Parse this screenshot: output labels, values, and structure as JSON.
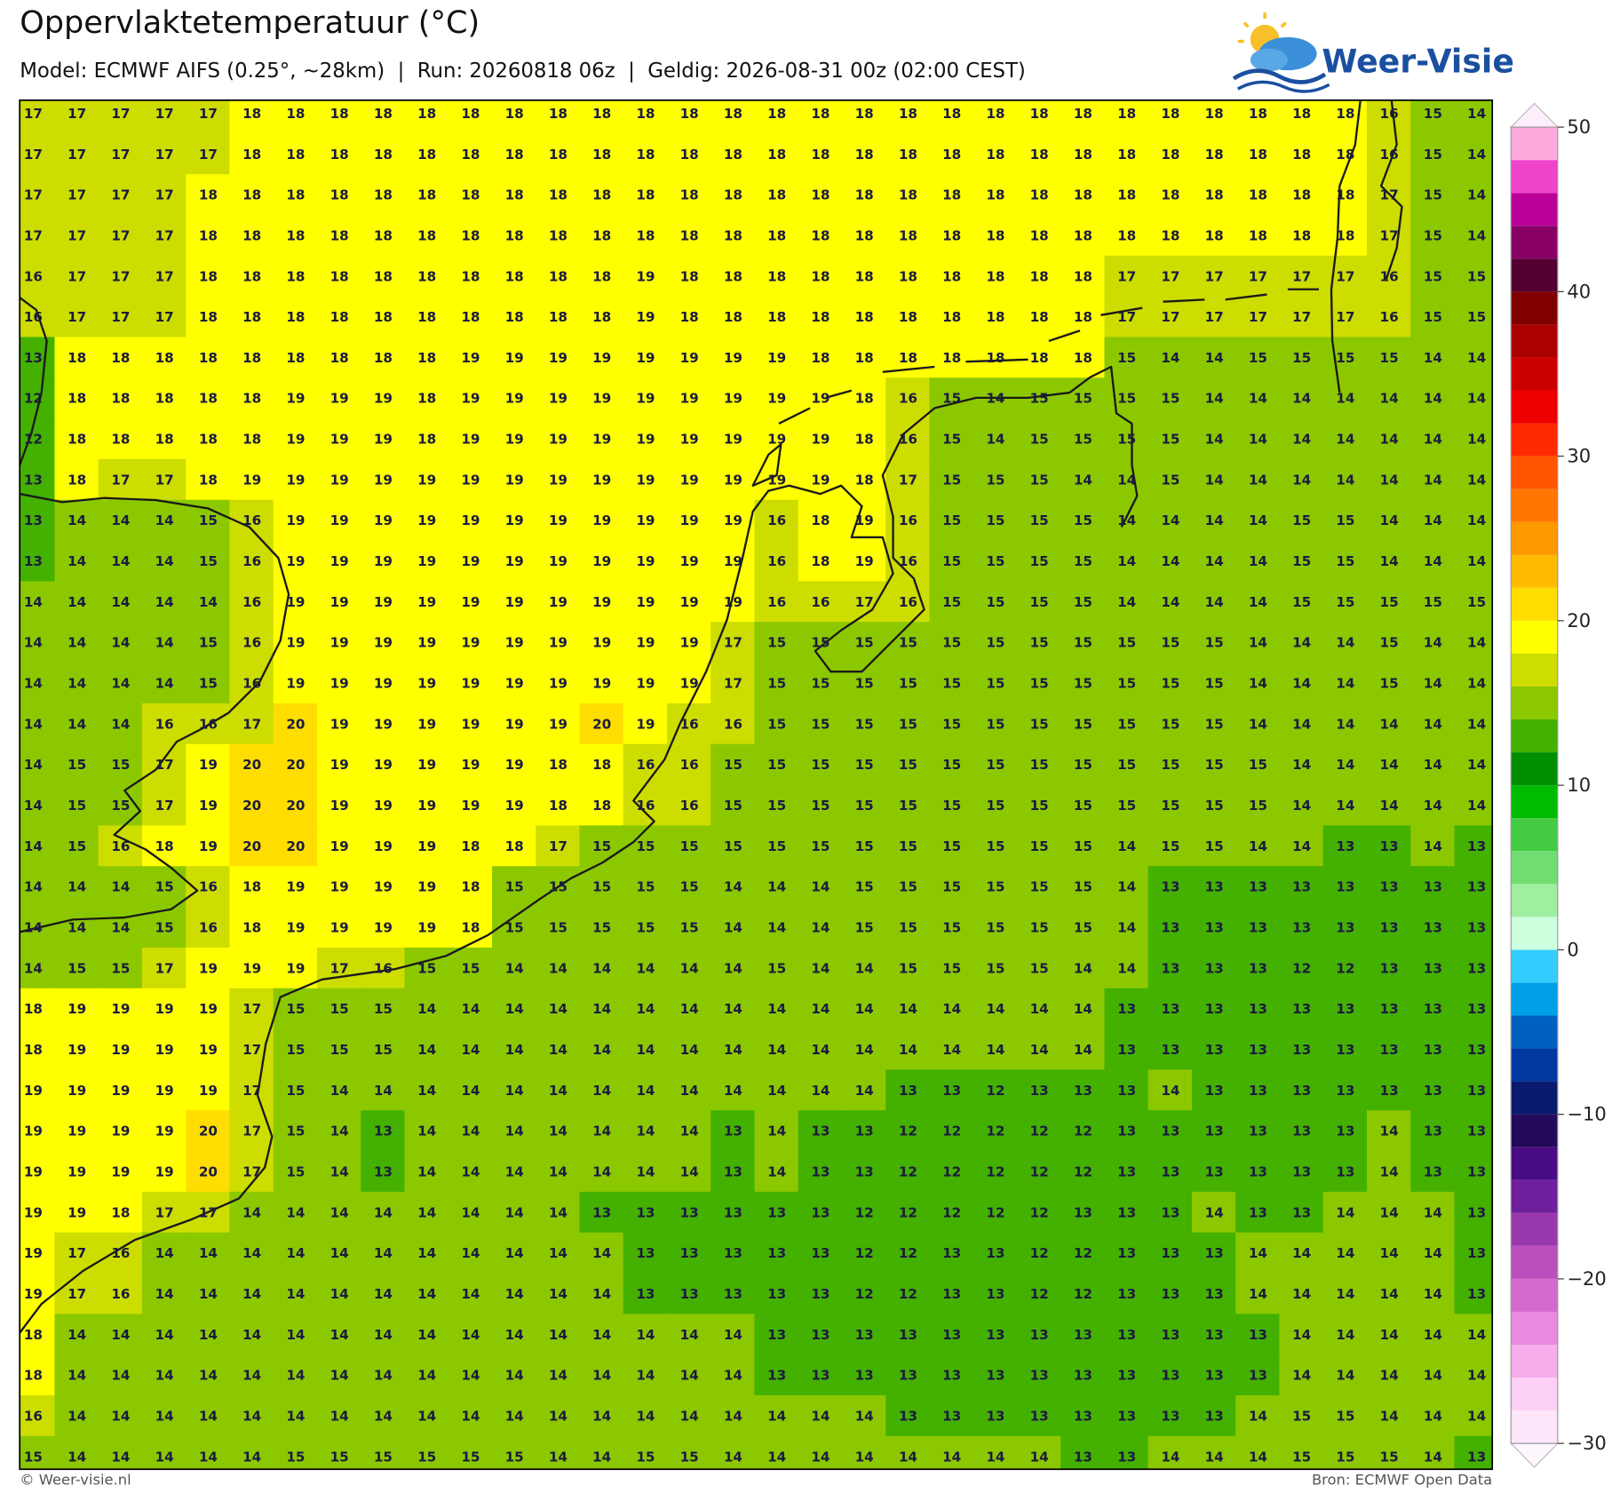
{
  "header": {
    "title": "Oppervlaktetemperatuur (°C)",
    "subtitle": "Model: ECMWF AIFS (0.25°, ~28km)  |  Run: 20260818 06z  |  Geldig: 2026-08-31 00z (02:00 CEST)"
  },
  "logo": {
    "text": "Weer-Visie"
  },
  "map": {
    "grid": [
      [
        17,
        17,
        17,
        17,
        17,
        18,
        18,
        18,
        18,
        18,
        18,
        18,
        18,
        18,
        18,
        18,
        18,
        18,
        18,
        18,
        18,
        18,
        18,
        18,
        18,
        18,
        18,
        18,
        18,
        18,
        18,
        16,
        15,
        14
      ],
      [
        17,
        17,
        17,
        17,
        17,
        18,
        18,
        18,
        18,
        18,
        18,
        18,
        18,
        18,
        18,
        18,
        18,
        18,
        18,
        18,
        18,
        18,
        18,
        18,
        18,
        18,
        18,
        18,
        18,
        18,
        18,
        16,
        15,
        14
      ],
      [
        17,
        17,
        17,
        17,
        18,
        18,
        18,
        18,
        18,
        18,
        18,
        18,
        18,
        18,
        18,
        18,
        18,
        18,
        18,
        18,
        18,
        18,
        18,
        18,
        18,
        18,
        18,
        18,
        18,
        18,
        18,
        17,
        15,
        14
      ],
      [
        17,
        17,
        17,
        17,
        18,
        18,
        18,
        18,
        18,
        18,
        18,
        18,
        18,
        18,
        18,
        18,
        18,
        18,
        18,
        18,
        18,
        18,
        18,
        18,
        18,
        18,
        18,
        18,
        18,
        18,
        18,
        17,
        15,
        14
      ],
      [
        16,
        17,
        17,
        17,
        18,
        18,
        18,
        18,
        18,
        18,
        18,
        18,
        18,
        18,
        19,
        18,
        18,
        18,
        18,
        18,
        18,
        18,
        18,
        18,
        18,
        17,
        17,
        17,
        17,
        17,
        17,
        16,
        15,
        15
      ],
      [
        16,
        17,
        17,
        17,
        18,
        18,
        18,
        18,
        18,
        18,
        18,
        18,
        18,
        18,
        19,
        18,
        18,
        18,
        18,
        18,
        18,
        18,
        18,
        18,
        18,
        17,
        17,
        17,
        17,
        17,
        17,
        16,
        15,
        15
      ],
      [
        13,
        18,
        18,
        18,
        18,
        18,
        18,
        18,
        18,
        18,
        19,
        19,
        19,
        19,
        19,
        19,
        19,
        19,
        18,
        18,
        18,
        18,
        18,
        18,
        18,
        15,
        14,
        14,
        15,
        15,
        15,
        15,
        14,
        14
      ],
      [
        12,
        18,
        18,
        18,
        18,
        18,
        19,
        19,
        19,
        18,
        19,
        19,
        19,
        19,
        19,
        19,
        19,
        19,
        19,
        18,
        16,
        15,
        14,
        15,
        15,
        15,
        15,
        14,
        14,
        14,
        14,
        14,
        14,
        14
      ],
      [
        12,
        18,
        18,
        18,
        18,
        18,
        19,
        19,
        19,
        18,
        19,
        19,
        19,
        19,
        19,
        19,
        19,
        19,
        19,
        18,
        16,
        15,
        14,
        15,
        15,
        15,
        15,
        14,
        14,
        14,
        14,
        14,
        14,
        14
      ],
      [
        13,
        18,
        17,
        17,
        18,
        19,
        19,
        19,
        19,
        19,
        19,
        19,
        19,
        19,
        19,
        19,
        19,
        19,
        19,
        18,
        17,
        15,
        15,
        15,
        14,
        14,
        15,
        14,
        14,
        14,
        14,
        14,
        14,
        14
      ],
      [
        13,
        14,
        14,
        14,
        15,
        16,
        19,
        19,
        19,
        19,
        19,
        19,
        19,
        19,
        19,
        19,
        19,
        16,
        18,
        19,
        16,
        15,
        15,
        15,
        15,
        14,
        14,
        14,
        14,
        15,
        15,
        14,
        14,
        14
      ],
      [
        13,
        14,
        14,
        14,
        15,
        16,
        19,
        19,
        19,
        19,
        19,
        19,
        19,
        19,
        19,
        19,
        19,
        16,
        18,
        19,
        16,
        15,
        15,
        15,
        15,
        14,
        14,
        14,
        14,
        15,
        15,
        14,
        14,
        14
      ],
      [
        14,
        14,
        14,
        14,
        14,
        16,
        19,
        19,
        19,
        19,
        19,
        19,
        19,
        19,
        19,
        19,
        19,
        16,
        16,
        17,
        16,
        15,
        15,
        15,
        15,
        14,
        14,
        14,
        14,
        15,
        15,
        15,
        15,
        15
      ],
      [
        14,
        14,
        14,
        14,
        15,
        16,
        19,
        19,
        19,
        19,
        19,
        19,
        19,
        19,
        19,
        19,
        17,
        15,
        15,
        15,
        15,
        15,
        15,
        15,
        15,
        15,
        15,
        15,
        14,
        14,
        14,
        15,
        14,
        14
      ],
      [
        14,
        14,
        14,
        14,
        15,
        16,
        19,
        19,
        19,
        19,
        19,
        19,
        19,
        19,
        19,
        19,
        17,
        15,
        15,
        15,
        15,
        15,
        15,
        15,
        15,
        15,
        15,
        15,
        14,
        14,
        14,
        15,
        14,
        14
      ],
      [
        14,
        14,
        14,
        16,
        16,
        17,
        20,
        19,
        19,
        19,
        19,
        19,
        19,
        20,
        19,
        16,
        16,
        15,
        15,
        15,
        15,
        15,
        15,
        15,
        15,
        15,
        15,
        15,
        14,
        14,
        14,
        14,
        14,
        14
      ],
      [
        14,
        15,
        15,
        17,
        19,
        20,
        20,
        19,
        19,
        19,
        19,
        19,
        18,
        18,
        16,
        16,
        15,
        15,
        15,
        15,
        15,
        15,
        15,
        15,
        15,
        15,
        15,
        15,
        15,
        14,
        14,
        14,
        14,
        14
      ],
      [
        14,
        15,
        15,
        17,
        19,
        20,
        20,
        19,
        19,
        19,
        19,
        19,
        18,
        18,
        16,
        16,
        15,
        15,
        15,
        15,
        15,
        15,
        15,
        15,
        15,
        15,
        15,
        15,
        15,
        14,
        14,
        14,
        14,
        14
      ],
      [
        14,
        15,
        16,
        18,
        19,
        20,
        20,
        19,
        19,
        19,
        18,
        18,
        17,
        15,
        15,
        15,
        15,
        15,
        15,
        15,
        15,
        15,
        15,
        15,
        15,
        14,
        15,
        15,
        14,
        14,
        13,
        13,
        14,
        13
      ],
      [
        14,
        14,
        14,
        15,
        16,
        18,
        19,
        19,
        19,
        19,
        18,
        15,
        15,
        15,
        15,
        15,
        14,
        14,
        14,
        15,
        15,
        15,
        15,
        15,
        15,
        14,
        13,
        13,
        13,
        13,
        13,
        13,
        13,
        13
      ],
      [
        14,
        14,
        14,
        15,
        16,
        18,
        19,
        19,
        19,
        19,
        18,
        15,
        15,
        15,
        15,
        15,
        14,
        14,
        14,
        15,
        15,
        15,
        15,
        15,
        15,
        14,
        13,
        13,
        13,
        13,
        13,
        13,
        13,
        13
      ],
      [
        14,
        15,
        15,
        17,
        19,
        19,
        19,
        17,
        16,
        15,
        15,
        14,
        14,
        14,
        14,
        14,
        14,
        15,
        14,
        14,
        15,
        15,
        15,
        15,
        14,
        14,
        13,
        13,
        13,
        12,
        12,
        13,
        13,
        13
      ],
      [
        18,
        19,
        19,
        19,
        19,
        17,
        15,
        15,
        15,
        14,
        14,
        14,
        14,
        14,
        14,
        14,
        14,
        14,
        14,
        14,
        14,
        14,
        14,
        14,
        14,
        13,
        13,
        13,
        13,
        13,
        13,
        13,
        13,
        13
      ],
      [
        18,
        19,
        19,
        19,
        19,
        17,
        15,
        15,
        15,
        14,
        14,
        14,
        14,
        14,
        14,
        14,
        14,
        14,
        14,
        14,
        14,
        14,
        14,
        14,
        14,
        13,
        13,
        13,
        13,
        13,
        13,
        13,
        13,
        13
      ],
      [
        19,
        19,
        19,
        19,
        19,
        17,
        15,
        14,
        14,
        14,
        14,
        14,
        14,
        14,
        14,
        14,
        14,
        14,
        14,
        14,
        13,
        13,
        12,
        13,
        13,
        13,
        14,
        13,
        13,
        13,
        13,
        13,
        13,
        13
      ],
      [
        19,
        19,
        19,
        19,
        20,
        17,
        15,
        14,
        13,
        14,
        14,
        14,
        14,
        14,
        14,
        14,
        13,
        14,
        13,
        13,
        12,
        12,
        12,
        12,
        12,
        13,
        13,
        13,
        13,
        13,
        13,
        14,
        13,
        13
      ],
      [
        19,
        19,
        19,
        19,
        20,
        17,
        15,
        14,
        13,
        14,
        14,
        14,
        14,
        14,
        14,
        14,
        13,
        14,
        13,
        13,
        12,
        12,
        12,
        12,
        12,
        13,
        13,
        13,
        13,
        13,
        13,
        14,
        13,
        13
      ],
      [
        19,
        19,
        18,
        17,
        17,
        14,
        14,
        14,
        14,
        14,
        14,
        14,
        14,
        13,
        13,
        13,
        13,
        13,
        13,
        12,
        12,
        12,
        12,
        12,
        13,
        13,
        13,
        14,
        13,
        13,
        14,
        14,
        14,
        13
      ],
      [
        19,
        17,
        16,
        14,
        14,
        14,
        14,
        14,
        14,
        14,
        14,
        14,
        14,
        14,
        13,
        13,
        13,
        13,
        13,
        12,
        12,
        13,
        13,
        12,
        12,
        13,
        13,
        13,
        14,
        14,
        14,
        14,
        14,
        13
      ],
      [
        19,
        17,
        16,
        14,
        14,
        14,
        14,
        14,
        14,
        14,
        14,
        14,
        14,
        14,
        13,
        13,
        13,
        13,
        13,
        12,
        12,
        13,
        13,
        12,
        12,
        13,
        13,
        13,
        14,
        14,
        14,
        14,
        14,
        13
      ],
      [
        18,
        14,
        14,
        14,
        14,
        14,
        14,
        14,
        14,
        14,
        14,
        14,
        14,
        14,
        14,
        14,
        14,
        13,
        13,
        13,
        13,
        13,
        13,
        13,
        13,
        13,
        13,
        13,
        13,
        14,
        14,
        14,
        14,
        14
      ],
      [
        18,
        14,
        14,
        14,
        14,
        14,
        14,
        14,
        14,
        14,
        14,
        14,
        14,
        14,
        14,
        14,
        14,
        13,
        13,
        13,
        13,
        13,
        13,
        13,
        13,
        13,
        13,
        13,
        13,
        14,
        14,
        14,
        14,
        14
      ],
      [
        16,
        14,
        14,
        14,
        14,
        14,
        14,
        14,
        14,
        14,
        14,
        14,
        14,
        14,
        14,
        14,
        14,
        14,
        14,
        14,
        13,
        13,
        13,
        13,
        13,
        13,
        13,
        13,
        14,
        15,
        15,
        14,
        14,
        14
      ],
      [
        15,
        14,
        14,
        14,
        14,
        14,
        15,
        15,
        15,
        15,
        15,
        15,
        14,
        14,
        15,
        15,
        14,
        14,
        14,
        14,
        14,
        14,
        14,
        14,
        13,
        13,
        14,
        14,
        14,
        15,
        15,
        15,
        14,
        13
      ]
    ]
  },
  "colorbar": {
    "levels": [
      -30,
      -28,
      -26,
      -24,
      -22,
      -20,
      -18,
      -16,
      -14,
      -12,
      -10,
      -8,
      -6,
      -4,
      -2,
      0,
      2,
      4,
      6,
      8,
      10,
      12,
      14,
      16,
      18,
      20,
      22,
      24,
      26,
      28,
      30,
      32,
      34,
      36,
      38,
      40,
      42,
      44,
      46,
      48,
      50
    ],
    "colors": [
      "#fde6fa",
      "#fcd0f5",
      "#f6aeec",
      "#e88ade",
      "#d46acd",
      "#bb4fbd",
      "#9a38ad",
      "#6f1e9c",
      "#4a0c84",
      "#240a5a",
      "#0a1a6e",
      "#0038a0",
      "#0060c0",
      "#00a0e8",
      "#33ccff",
      "#ccffdd",
      "#a0eea0",
      "#70dd70",
      "#44cc44",
      "#00bb00",
      "#008f00",
      "#44b000",
      "#8cc800",
      "#cddd00",
      "#ffff00",
      "#ffdd00",
      "#ffbb00",
      "#ff9900",
      "#ff7700",
      "#ff5500",
      "#ff2a00",
      "#ee0000",
      "#cc0000",
      "#aa0000",
      "#800000",
      "#550033",
      "#880066",
      "#bb0099",
      "#ee44cc",
      "#ffaadd"
    ],
    "ticks": [
      50,
      40,
      30,
      20,
      10,
      0,
      {
        "value": -10,
        "label": "−10"
      },
      {
        "value": -20,
        "label": "−20"
      },
      {
        "value": -30,
        "label": "−30"
      }
    ]
  },
  "footer": {
    "left": "© Weer-visie.nl",
    "right": "Bron: ECMWF Open Data"
  }
}
